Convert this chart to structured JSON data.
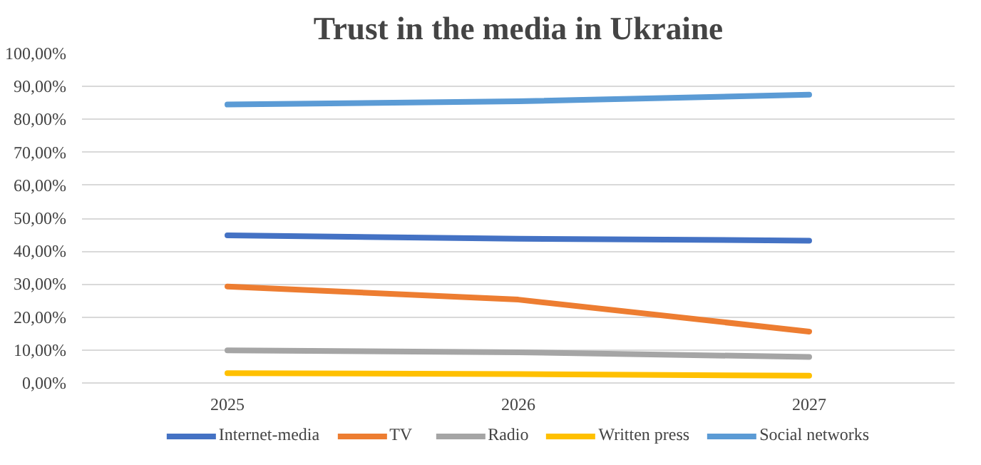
{
  "chart_data": {
    "type": "line",
    "title": "Trust in the media in Ukraine",
    "categories": [
      "2025",
      "2026",
      "2027"
    ],
    "series": [
      {
        "name": "Internet-media",
        "color": "#4472c4",
        "values": [
          44.8,
          43.8,
          43.2
        ]
      },
      {
        "name": "TV",
        "color": "#ed7d31",
        "values": [
          29.3,
          25.3,
          15.6
        ]
      },
      {
        "name": "Radio",
        "color": "#a5a5a5",
        "values": [
          9.9,
          9.3,
          7.9
        ]
      },
      {
        "name": "Written press",
        "color": "#ffc000",
        "values": [
          3.0,
          2.7,
          2.2
        ]
      },
      {
        "name": "Social networks",
        "color": "#5b9bd5",
        "values": [
          84.5,
          85.5,
          87.5
        ]
      }
    ],
    "ylim": [
      0,
      100
    ],
    "yticks": [
      {
        "value": 0,
        "label": "0,00%"
      },
      {
        "value": 10,
        "label": "10,00%"
      },
      {
        "value": 20,
        "label": "20,00%"
      },
      {
        "value": 30,
        "label": "30,00%"
      },
      {
        "value": 40,
        "label": "40,00%"
      },
      {
        "value": 50,
        "label": "50,00%"
      },
      {
        "value": 60,
        "label": "60,00%"
      },
      {
        "value": 70,
        "label": "70,00%"
      },
      {
        "value": 80,
        "label": "80,00%"
      },
      {
        "value": 90,
        "label": "90,00%"
      },
      {
        "value": 100,
        "label": "100,00%"
      }
    ],
    "grid": "y",
    "legend": "bottom",
    "marker": "none",
    "line_style": "solid"
  }
}
